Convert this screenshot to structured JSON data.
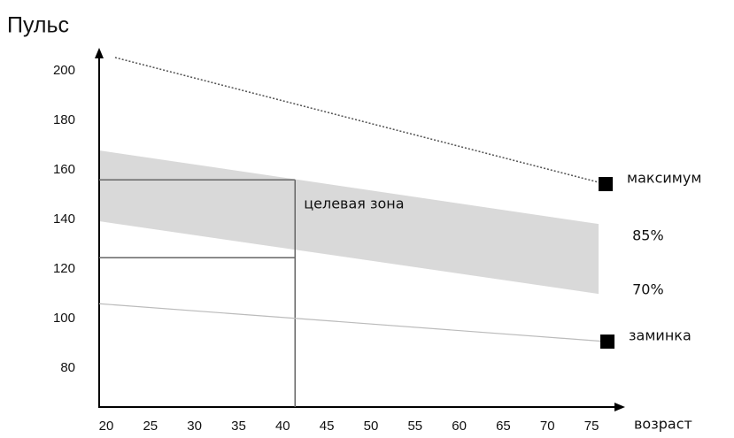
{
  "chart_data": {
    "type": "line",
    "y_label": "Пульс",
    "x_label": "возраст",
    "xlim": [
      19.2,
      78.2
    ],
    "ylim": [
      64.3,
      207.9
    ],
    "xticks": [
      20,
      25,
      30,
      35,
      40,
      45,
      50,
      55,
      60,
      65,
      70,
      75
    ],
    "yticks": [
      80,
      100,
      120,
      140,
      160,
      180,
      200
    ],
    "grid": false,
    "series": [
      {
        "name": "максимум",
        "color": "#555555",
        "style": "dotted",
        "marker": "square",
        "x": [
          21,
          76.6
        ],
        "values": [
          205.4,
          154.3
        ]
      },
      {
        "name": "85%",
        "color": "#d9d9d9",
        "style": "band-top",
        "x": [
          19.2,
          75.8
        ],
        "values": [
          167.9,
          138.2
        ]
      },
      {
        "name": "70%",
        "color": "#d9d9d9",
        "style": "band-bottom",
        "x": [
          19.2,
          75.8
        ],
        "values": [
          139.3,
          110
        ]
      },
      {
        "name": "заминка",
        "color": "#bbbbbb",
        "style": "solid",
        "marker": "square",
        "x": [
          19.2,
          76.8
        ],
        "values": [
          106,
          90.7
        ]
      }
    ],
    "target_zone": {
      "label": "целевая зона",
      "x": 41.4,
      "upper": 156,
      "lower": 124.6,
      "color": "#666666"
    }
  }
}
